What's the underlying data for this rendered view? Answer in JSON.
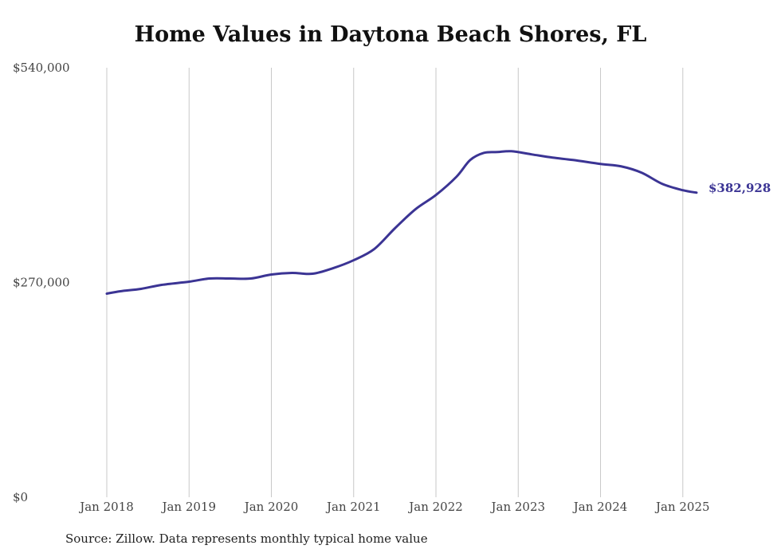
{
  "page_title": "Home Values in Daytona Beach Shores, FL",
  "source_note": "Source: Zillow. Data represents monthly typical home value",
  "colors": {
    "line": "#3b3494",
    "grid": "#c8c8c8",
    "tick_text": "#444444",
    "label_text": "#3b3494"
  },
  "chart_data": {
    "type": "line",
    "title": "Home Values in Daytona Beach Shores, FL",
    "xlabel": "",
    "ylabel": "",
    "ylim": [
      0,
      540000
    ],
    "xlim": [
      "2018-01",
      "2025-03"
    ],
    "y_ticks": [
      {
        "value": 0,
        "label": "$0"
      },
      {
        "value": 270000,
        "label": "$270,000"
      },
      {
        "value": 540000,
        "label": "$540,000"
      }
    ],
    "x_ticks": [
      {
        "value": "2018-01",
        "label": "Jan 2018"
      },
      {
        "value": "2019-01",
        "label": "Jan 2019"
      },
      {
        "value": "2020-01",
        "label": "Jan 2020"
      },
      {
        "value": "2021-01",
        "label": "Jan 2021"
      },
      {
        "value": "2022-01",
        "label": "Jan 2022"
      },
      {
        "value": "2023-01",
        "label": "Jan 2023"
      },
      {
        "value": "2024-01",
        "label": "Jan 2024"
      },
      {
        "value": "2025-01",
        "label": "Jan 2025"
      }
    ],
    "grid": {
      "vertical": true,
      "horizontal": false
    },
    "legend": "none",
    "series": [
      {
        "end_label": "$382,928",
        "points": [
          {
            "x": "2018-01",
            "y": 256000
          },
          {
            "x": "2018-03",
            "y": 259000
          },
          {
            "x": "2018-06",
            "y": 262000
          },
          {
            "x": "2018-09",
            "y": 267000
          },
          {
            "x": "2019-01",
            "y": 271000
          },
          {
            "x": "2019-04",
            "y": 275000
          },
          {
            "x": "2019-07",
            "y": 275000
          },
          {
            "x": "2019-10",
            "y": 275000
          },
          {
            "x": "2020-01",
            "y": 280000
          },
          {
            "x": "2020-04",
            "y": 282000
          },
          {
            "x": "2020-07",
            "y": 281000
          },
          {
            "x": "2020-10",
            "y": 288000
          },
          {
            "x": "2021-01",
            "y": 298000
          },
          {
            "x": "2021-04",
            "y": 312000
          },
          {
            "x": "2021-07",
            "y": 338000
          },
          {
            "x": "2021-10",
            "y": 362000
          },
          {
            "x": "2022-01",
            "y": 380000
          },
          {
            "x": "2022-04",
            "y": 403000
          },
          {
            "x": "2022-06",
            "y": 424000
          },
          {
            "x": "2022-08",
            "y": 433000
          },
          {
            "x": "2022-10",
            "y": 434000
          },
          {
            "x": "2022-12",
            "y": 435000
          },
          {
            "x": "2023-03",
            "y": 431000
          },
          {
            "x": "2023-06",
            "y": 427000
          },
          {
            "x": "2023-09",
            "y": 424000
          },
          {
            "x": "2024-01",
            "y": 419000
          },
          {
            "x": "2024-04",
            "y": 416000
          },
          {
            "x": "2024-07",
            "y": 408000
          },
          {
            "x": "2024-10",
            "y": 394000
          },
          {
            "x": "2025-01",
            "y": 386000
          },
          {
            "x": "2025-03",
            "y": 382928
          }
        ]
      }
    ]
  }
}
